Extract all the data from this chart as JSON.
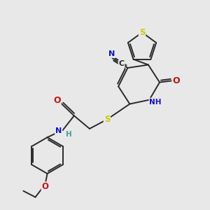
{
  "bg_color": "#e8e8e8",
  "bond_color": "#2a2a2a",
  "bond_width": 1.4,
  "atom_colors": {
    "C": "#2a2a2a",
    "N": "#1010cc",
    "O": "#cc1010",
    "S": "#cccc00",
    "H": "#4a9a9a"
  },
  "figsize": [
    3.0,
    3.0
  ],
  "dpi": 100
}
